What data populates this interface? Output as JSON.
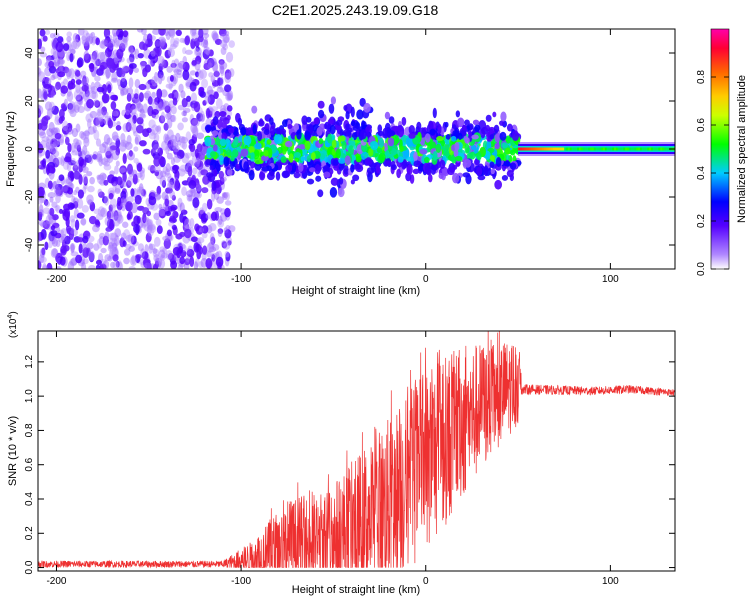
{
  "title": "C2E1.2025.243.19.09.G18",
  "chart_data": [
    {
      "type": "heatmap",
      "xlabel": "Height of straight line (km)",
      "ylabel": "Frequency (Hz)",
      "xlim": [
        -210,
        135
      ],
      "ylim": [
        -50,
        50
      ],
      "xticks": [
        -200,
        -100,
        0,
        100
      ],
      "xtick_labels": [
        "-200",
        "-100",
        "0",
        "100"
      ],
      "yticks": [
        -40,
        -20,
        0,
        20,
        40
      ],
      "ytick_labels": [
        "-40",
        "-20",
        "0",
        "20",
        "40"
      ],
      "colorbar": {
        "label": "Normalized spectral amplitude",
        "range": [
          0.0,
          1.0
        ],
        "ticks": [
          0.0,
          0.2,
          0.4,
          0.6,
          0.8
        ],
        "tick_labels": [
          "0.0",
          "0.2",
          "0.4",
          "0.6",
          "0.8"
        ],
        "colors": [
          "#ffffff",
          "#7f00ff",
          "#0000ff",
          "#00ffff",
          "#00ff00",
          "#ffff00",
          "#ff7f00",
          "#ff0000",
          "#ff00ff"
        ]
      },
      "regions": [
        {
          "x_range": [
            -210,
            -105
          ],
          "freq_spread": 50,
          "level": "0.0-0.2",
          "description": "scattered noise"
        },
        {
          "x_range": [
            -118,
            50
          ],
          "freq_spread": 20,
          "level": "0.2-0.6",
          "description": "blob band"
        },
        {
          "x_range": [
            50,
            135
          ],
          "freq_spread": 3,
          "level": "0.3-0.9",
          "description": "steady carrier at 0 Hz"
        }
      ]
    },
    {
      "type": "line",
      "xlabel": "Height of straight line (km)",
      "ylabel": "SNR (10 * v/v)",
      "yscale_label": "(x10",
      "yscale_exp": "4",
      "yscale_close": ")",
      "xlim": [
        -210,
        135
      ],
      "ylim": [
        -0.02,
        1.38
      ],
      "xticks": [
        -200,
        -100,
        0,
        100
      ],
      "xtick_labels": [
        "-200",
        "-100",
        "0",
        "100"
      ],
      "yticks": [
        0.0,
        0.2,
        0.4,
        0.6,
        0.8,
        1.0,
        1.2
      ],
      "ytick_labels": [
        "0.0",
        "0.2",
        "0.4",
        "0.6",
        "0.8",
        "1.0",
        "1.2"
      ],
      "color": "#ee3030",
      "series": [
        {
          "name": "SNR",
          "envelope": [
            {
              "x": -210,
              "base": 0.02,
              "amp": 0.02
            },
            {
              "x": -110,
              "base": 0.02,
              "amp": 0.02
            },
            {
              "x": -95,
              "base": 0.05,
              "amp": 0.1
            },
            {
              "x": -75,
              "base": 0.12,
              "amp": 0.28
            },
            {
              "x": -55,
              "base": 0.15,
              "amp": 0.3
            },
            {
              "x": -40,
              "base": 0.22,
              "amp": 0.4
            },
            {
              "x": -20,
              "base": 0.38,
              "amp": 0.5
            },
            {
              "x": 0,
              "base": 0.62,
              "amp": 0.55
            },
            {
              "x": 20,
              "base": 0.85,
              "amp": 0.45
            },
            {
              "x": 35,
              "base": 0.98,
              "amp": 0.35
            },
            {
              "x": 50,
              "base": 1.08,
              "amp": 0.25
            },
            {
              "x": 52,
              "base": 1.04,
              "amp": 0.03
            },
            {
              "x": 90,
              "base": 1.03,
              "amp": 0.025
            },
            {
              "x": 110,
              "base": 1.04,
              "amp": 0.025
            },
            {
              "x": 135,
              "base": 1.02,
              "amp": 0.02
            }
          ]
        }
      ]
    }
  ]
}
